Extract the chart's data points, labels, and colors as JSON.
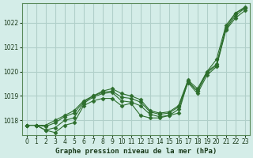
{
  "title": "Graphe pression niveau de la mer (hPa)",
  "background_color": "#d4ede8",
  "grid_color": "#b0cfc9",
  "line_color": "#2d6e2d",
  "xlim": [
    -0.5,
    23.5
  ],
  "ylim": [
    1017.4,
    1022.8
  ],
  "yticks": [
    1018,
    1019,
    1020,
    1021,
    1022
  ],
  "xticks": [
    0,
    1,
    2,
    3,
    4,
    5,
    6,
    7,
    8,
    9,
    10,
    11,
    12,
    13,
    14,
    15,
    16,
    17,
    18,
    19,
    20,
    21,
    22,
    23
  ],
  "series": [
    [
      1017.8,
      1017.8,
      1017.6,
      1017.5,
      1017.8,
      1017.9,
      1018.6,
      1018.8,
      1018.9,
      1018.9,
      1018.6,
      1018.7,
      1018.2,
      1018.1,
      1018.1,
      1018.2,
      1018.3,
      1019.6,
      1019.2,
      1020.0,
      1020.5,
      1021.9,
      1022.4,
      1022.6
    ],
    [
      1017.8,
      1017.8,
      1017.6,
      1017.7,
      1018.0,
      1018.1,
      1018.7,
      1018.95,
      1019.1,
      1019.15,
      1018.8,
      1018.75,
      1018.6,
      1018.25,
      1018.15,
      1018.2,
      1018.45,
      1019.55,
      1019.1,
      1019.85,
      1020.2,
      1021.7,
      1022.2,
      1022.5
    ],
    [
      1017.8,
      1017.8,
      1017.75,
      1017.9,
      1018.15,
      1018.3,
      1018.75,
      1019.0,
      1019.15,
      1019.2,
      1018.95,
      1018.9,
      1018.75,
      1018.35,
      1018.25,
      1018.3,
      1018.55,
      1019.6,
      1019.2,
      1019.95,
      1020.25,
      1021.75,
      1022.3,
      1022.6
    ],
    [
      1017.8,
      1017.8,
      1017.8,
      1018.0,
      1018.2,
      1018.4,
      1018.8,
      1019.0,
      1019.2,
      1019.3,
      1019.1,
      1019.0,
      1018.85,
      1018.4,
      1018.3,
      1018.35,
      1018.6,
      1019.65,
      1019.3,
      1020.0,
      1020.3,
      1021.8,
      1022.4,
      1022.65
    ]
  ]
}
